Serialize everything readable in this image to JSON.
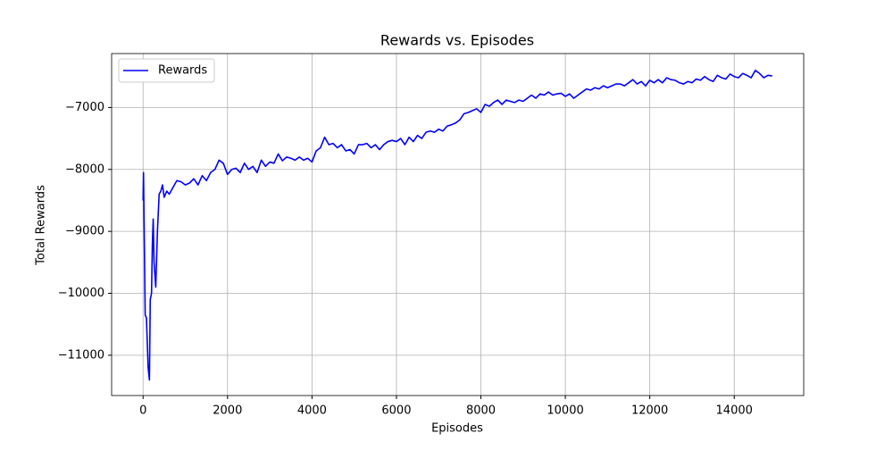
{
  "chart_data": {
    "type": "line",
    "title": "Rewards vs. Episodes",
    "x_label": "Episodes",
    "y_label": "Total Rewards",
    "legend": "upper left",
    "grid": true,
    "xlim": [
      -745,
      15645
    ],
    "ylim": [
      -11651,
      -6129
    ],
    "xticks": [
      0,
      2000,
      4000,
      6000,
      8000,
      10000,
      12000,
      14000
    ],
    "yticks": [
      {
        "value": -11000,
        "label": "−11000"
      },
      {
        "value": -10000,
        "label": "−10000"
      },
      {
        "value": -9000,
        "label": "−9000"
      },
      {
        "value": -8000,
        "label": "−8000"
      },
      {
        "value": -7000,
        "label": "−7000"
      }
    ],
    "x": [
      0,
      10,
      50,
      80,
      120,
      150,
      170,
      200,
      220,
      240,
      260,
      300,
      340,
      380,
      420,
      460,
      500,
      560,
      620,
      700,
      800,
      900,
      1000,
      1100,
      1200,
      1300,
      1400,
      1500,
      1600,
      1700,
      1800,
      1900,
      2000,
      2100,
      2200,
      2300,
      2400,
      2500,
      2600,
      2700,
      2800,
      2900,
      3000,
      3100,
      3200,
      3300,
      3400,
      3500,
      3600,
      3700,
      3800,
      3900,
      4000,
      4100,
      4200,
      4300,
      4400,
      4500,
      4600,
      4700,
      4800,
      4900,
      5000,
      5100,
      5200,
      5300,
      5400,
      5500,
      5600,
      5700,
      5800,
      5900,
      6000,
      6100,
      6200,
      6300,
      6400,
      6500,
      6600,
      6700,
      6800,
      6900,
      7000,
      7100,
      7200,
      7300,
      7400,
      7500,
      7600,
      7700,
      7800,
      7900,
      8000,
      8100,
      8200,
      8300,
      8400,
      8500,
      8600,
      8700,
      8800,
      8900,
      9000,
      9100,
      9200,
      9300,
      9400,
      9500,
      9600,
      9700,
      9800,
      9900,
      10000,
      10100,
      10200,
      10300,
      10400,
      10500,
      10600,
      10700,
      10800,
      10900,
      11000,
      11100,
      11200,
      11300,
      11400,
      11500,
      11600,
      11700,
      11800,
      11900,
      12000,
      12100,
      12200,
      12300,
      12400,
      12500,
      12600,
      12700,
      12800,
      12900,
      13000,
      13100,
      13200,
      13300,
      13400,
      13500,
      13600,
      13700,
      13800,
      13900,
      14000,
      14100,
      14200,
      14300,
      14400,
      14500,
      14600,
      14700,
      14800,
      14900
    ],
    "series": [
      {
        "name": "Rewards",
        "color": "#0000ff",
        "values": [
          -8500,
          -8050,
          -10350,
          -10400,
          -11200,
          -11400,
          -10100,
          -10000,
          -9200,
          -8800,
          -9500,
          -9900,
          -9000,
          -8400,
          -8350,
          -8250,
          -8450,
          -8350,
          -8400,
          -8300,
          -8180,
          -8200,
          -8250,
          -8220,
          -8150,
          -8250,
          -8100,
          -8180,
          -8050,
          -8000,
          -7850,
          -7900,
          -8080,
          -8000,
          -7980,
          -8050,
          -7900,
          -8000,
          -7950,
          -8050,
          -7850,
          -7950,
          -7880,
          -7900,
          -7750,
          -7860,
          -7800,
          -7820,
          -7850,
          -7800,
          -7850,
          -7820,
          -7880,
          -7700,
          -7650,
          -7480,
          -7600,
          -7580,
          -7650,
          -7600,
          -7700,
          -7680,
          -7750,
          -7600,
          -7600,
          -7580,
          -7650,
          -7600,
          -7680,
          -7600,
          -7550,
          -7530,
          -7550,
          -7500,
          -7600,
          -7480,
          -7550,
          -7450,
          -7500,
          -7400,
          -7380,
          -7400,
          -7350,
          -7380,
          -7300,
          -7280,
          -7250,
          -7200,
          -7100,
          -7080,
          -7050,
          -7020,
          -7080,
          -6950,
          -6980,
          -6920,
          -6880,
          -6950,
          -6880,
          -6900,
          -6920,
          -6880,
          -6900,
          -6850,
          -6800,
          -6850,
          -6780,
          -6800,
          -6750,
          -6800,
          -6780,
          -6770,
          -6820,
          -6780,
          -6850,
          -6800,
          -6750,
          -6700,
          -6720,
          -6680,
          -6700,
          -6650,
          -6680,
          -6650,
          -6620,
          -6620,
          -6650,
          -6600,
          -6550,
          -6620,
          -6580,
          -6650,
          -6560,
          -6600,
          -6550,
          -6600,
          -6520,
          -6550,
          -6560,
          -6600,
          -6620,
          -6580,
          -6600,
          -6540,
          -6560,
          -6500,
          -6550,
          -6580,
          -6480,
          -6520,
          -6540,
          -6460,
          -6500,
          -6520,
          -6450,
          -6480,
          -6520,
          -6400,
          -6450,
          -6520,
          -6480,
          -6490
        ]
      }
    ]
  }
}
